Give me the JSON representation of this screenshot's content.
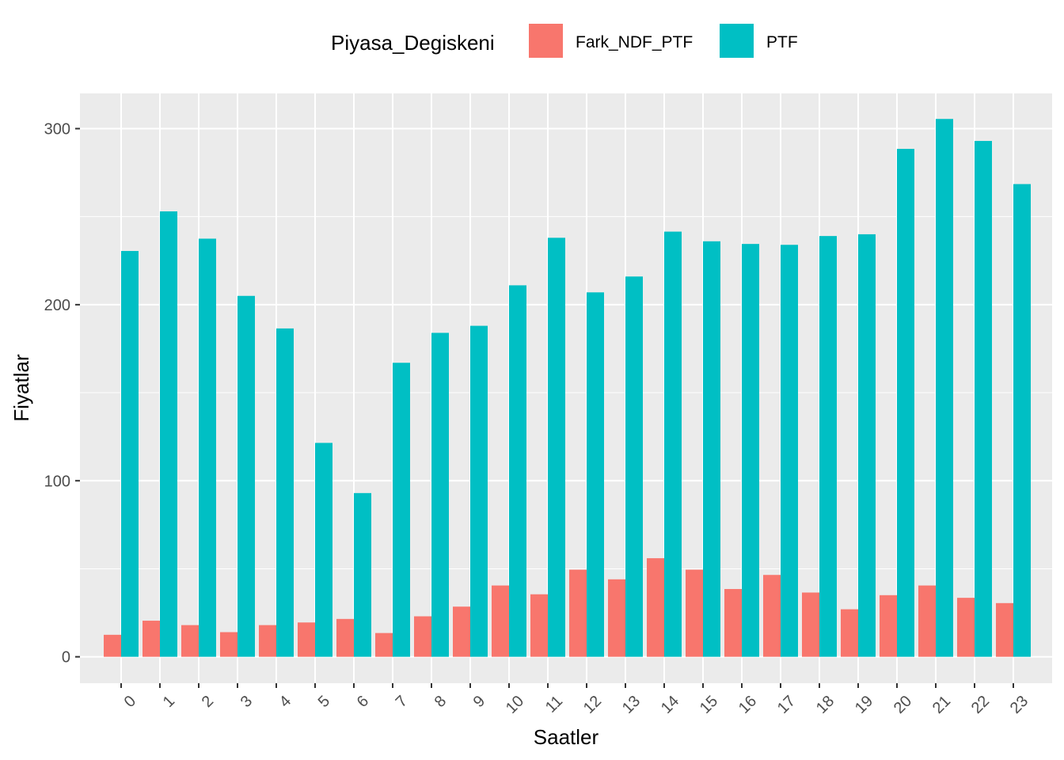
{
  "chart_data": {
    "type": "bar",
    "xlabel": "Saatler",
    "ylabel": "Fiyatlar",
    "ylim": [
      -15,
      320
    ],
    "yticks": [
      0,
      100,
      200,
      300
    ],
    "grid": true,
    "legend": {
      "title": "Piyasa_Degiskeni",
      "placement": "top"
    },
    "categories": [
      "0",
      "1",
      "2",
      "3",
      "4",
      "5",
      "6",
      "7",
      "8",
      "9",
      "10",
      "11",
      "12",
      "13",
      "14",
      "15",
      "16",
      "17",
      "18",
      "19",
      "20",
      "21",
      "22",
      "23"
    ],
    "series": [
      {
        "name": "Fark_NDF_PTF",
        "color": "#F8766D",
        "values": [
          12.5,
          20.5,
          18,
          14,
          18,
          19.5,
          21.5,
          13.5,
          23,
          28.5,
          40.5,
          35.5,
          49.5,
          44,
          56,
          49.5,
          38.5,
          46.5,
          36.5,
          27,
          35,
          40.5,
          33.5,
          30.5
        ]
      },
      {
        "name": "PTF",
        "color": "#00BFC4",
        "values": [
          230.5,
          253,
          237.5,
          205,
          186.5,
          121.5,
          93,
          167,
          184,
          188,
          211,
          238,
          207,
          216,
          241.5,
          236,
          234.5,
          234,
          239,
          240,
          288.5,
          305.5,
          293,
          268.5
        ]
      }
    ]
  }
}
